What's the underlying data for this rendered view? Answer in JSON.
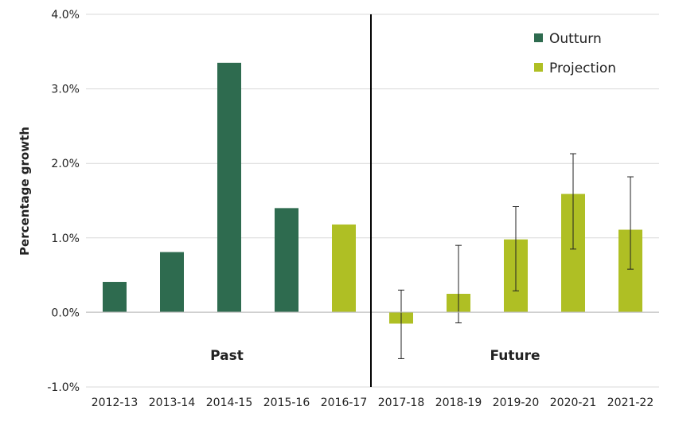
{
  "chart_data": {
    "type": "bar",
    "ylabel": "Percentage growth",
    "ylim": [
      -1.0,
      4.0
    ],
    "yticks": [
      "-1.0%",
      "0.0%",
      "1.0%",
      "2.0%",
      "3.0%",
      "4.0%"
    ],
    "grid": true,
    "categories": [
      "2012-13",
      "2013-14",
      "2014-15",
      "2015-16",
      "2016-17",
      "2017-18",
      "2018-19",
      "2019-20",
      "2020-21",
      "2021-22"
    ],
    "series": [
      {
        "name": "Outturn",
        "color": "#2e6b4f",
        "values": [
          0.41,
          0.81,
          3.35,
          1.4,
          null,
          null,
          null,
          null,
          null,
          null
        ]
      },
      {
        "name": "Projection",
        "color": "#afbf24",
        "values": [
          null,
          null,
          null,
          null,
          1.18,
          -0.15,
          0.25,
          0.98,
          1.59,
          1.11
        ]
      }
    ],
    "error_bars": [
      {
        "category": "2017-18",
        "low": -0.62,
        "high": 0.3
      },
      {
        "category": "2018-19",
        "low": -0.14,
        "high": 0.9
      },
      {
        "category": "2019-20",
        "low": 0.29,
        "high": 1.42
      },
      {
        "category": "2020-21",
        "low": 0.85,
        "high": 2.13
      },
      {
        "category": "2021-22",
        "low": 0.58,
        "high": 1.82
      }
    ],
    "divider_after": "2016-17",
    "regions": {
      "left": "Past",
      "right": "Future"
    },
    "legend_position": "top-right"
  }
}
